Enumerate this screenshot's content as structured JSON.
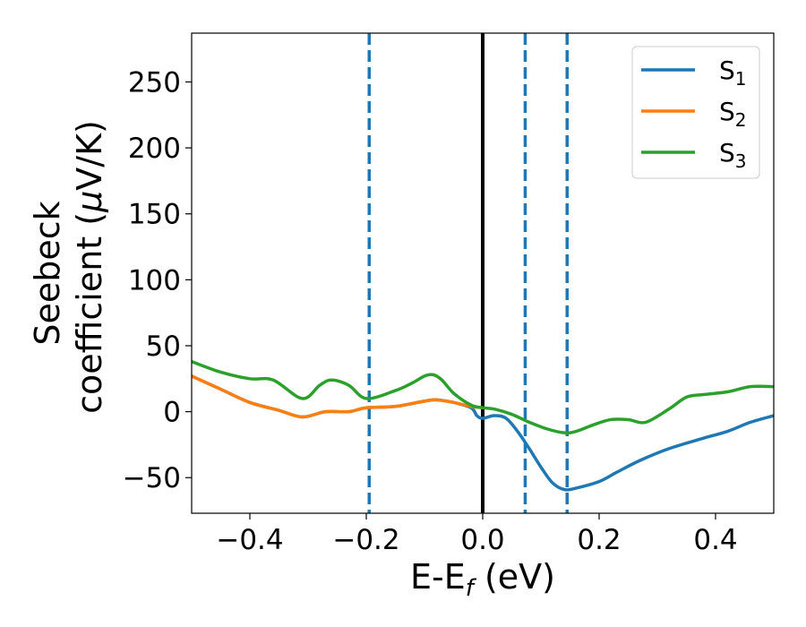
{
  "chart_data": {
    "type": "line",
    "xlabel": {
      "main": "E-E",
      "sub": "f",
      "unit": " (eV)"
    },
    "ylabel": {
      "line1": "Seebeck",
      "line2_pre": "coefficient  (",
      "mu": "μ",
      "line2_post": "V/K)"
    },
    "xlim": [
      -0.5,
      0.5
    ],
    "ylim": [
      -77,
      287
    ],
    "xticks": [
      -0.4,
      -0.2,
      0.0,
      0.2,
      0.4
    ],
    "xtick_labels": [
      "−0.4",
      "−0.2",
      "0.0",
      "0.2",
      "0.4"
    ],
    "yticks": [
      -50,
      0,
      50,
      100,
      150,
      200,
      250
    ],
    "ytick_labels": [
      "−50",
      "0",
      "50",
      "100",
      "150",
      "200",
      "250"
    ],
    "legend_position": "top-right",
    "grid": false,
    "vlines": [
      {
        "x": -0.195,
        "style": "dashed",
        "color": "#1f77b4"
      },
      {
        "x": 0.0,
        "style": "solid",
        "color": "#000000"
      },
      {
        "x": 0.073,
        "style": "dashed",
        "color": "#1f77b4"
      },
      {
        "x": 0.145,
        "style": "dashed",
        "color": "#1f77b4"
      }
    ],
    "series": [
      {
        "name": "S",
        "sub": "1",
        "color": "#1f77b4",
        "x": [
          -0.5,
          -0.45,
          -0.4,
          -0.35,
          -0.31,
          -0.27,
          -0.23,
          -0.2,
          -0.15,
          -0.1,
          -0.08,
          -0.05,
          -0.02,
          -0.01,
          0.0,
          0.02,
          0.04,
          0.06,
          0.08,
          0.1,
          0.12,
          0.14,
          0.16,
          0.2,
          0.23,
          0.27,
          0.32,
          0.38,
          0.42,
          0.46,
          0.5
        ],
        "y": [
          27,
          17,
          7,
          1,
          -4,
          0,
          0,
          3,
          4,
          8,
          9,
          7,
          3,
          -3,
          -5,
          -3,
          -5,
          -15,
          -28,
          -42,
          -54,
          -59,
          -58,
          -53,
          -46,
          -37,
          -28,
          -20,
          -15,
          -8,
          -3
        ]
      },
      {
        "name": "S",
        "sub": "2",
        "color": "#ff7f0e",
        "x": [
          -0.5,
          -0.45,
          -0.4,
          -0.35,
          -0.31,
          -0.27,
          -0.23,
          -0.2,
          -0.15,
          -0.1,
          -0.08,
          -0.05,
          -0.02,
          0.0
        ],
        "y": [
          27,
          17,
          7,
          1,
          -4,
          0,
          0,
          3,
          4,
          8,
          9,
          7,
          4,
          3
        ]
      },
      {
        "name": "S",
        "sub": "3",
        "color": "#2ca02c",
        "x": [
          -0.5,
          -0.45,
          -0.4,
          -0.36,
          -0.31,
          -0.28,
          -0.26,
          -0.23,
          -0.2,
          -0.15,
          -0.12,
          -0.1,
          -0.085,
          -0.07,
          -0.05,
          -0.02,
          0.0,
          0.02,
          0.05,
          0.08,
          0.11,
          0.14,
          0.16,
          0.19,
          0.22,
          0.25,
          0.28,
          0.32,
          0.35,
          0.38,
          0.42,
          0.46,
          0.5
        ],
        "y": [
          38,
          30,
          25,
          24,
          10,
          20,
          24,
          20,
          10,
          16,
          22,
          27,
          28,
          24,
          14,
          5,
          3,
          2,
          -2,
          -8,
          -13,
          -16,
          -15,
          -10,
          -6,
          -6,
          -8,
          2,
          11,
          13,
          15,
          19,
          19
        ]
      }
    ]
  }
}
